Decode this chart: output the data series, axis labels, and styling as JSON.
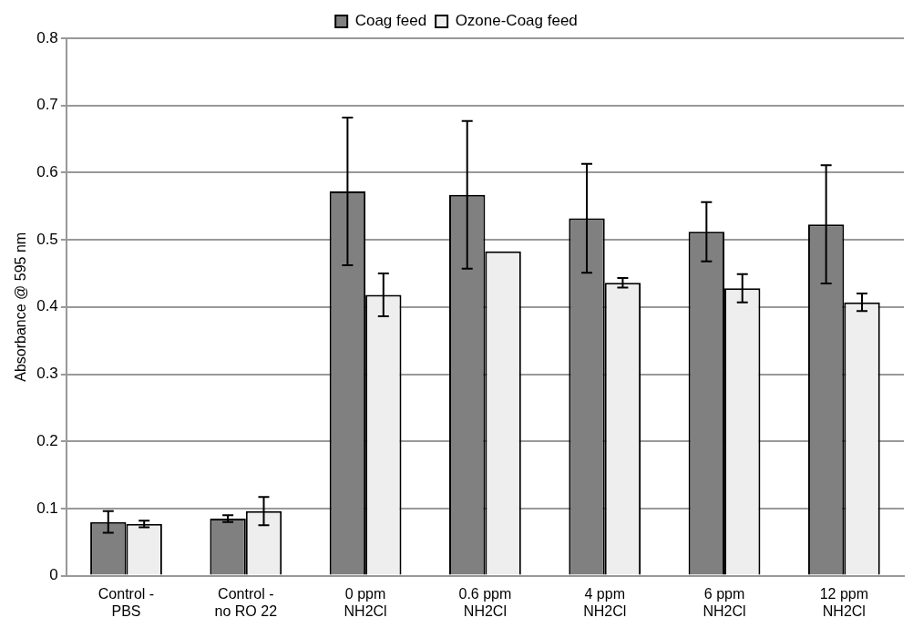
{
  "chart_data": {
    "type": "bar",
    "ylabel": "Absorbance @ 595 nm",
    "categories": [
      "Control - PBS",
      "Control - no RO 22",
      "0 ppm NH2Cl",
      "0.6 ppm NH2Cl",
      "4 ppm NH2Cl",
      "6 ppm NH2Cl",
      "12 ppm NH2Cl"
    ],
    "series": [
      {
        "name": "Coag feed",
        "color": "#808080",
        "values": [
          0.08,
          0.085,
          0.572,
          0.567,
          0.532,
          0.512,
          0.523
        ],
        "errors": [
          0.016,
          0.005,
          0.11,
          0.11,
          0.081,
          0.044,
          0.088
        ]
      },
      {
        "name": "Ozone-Coag feed",
        "color": "#eeeeee",
        "values": [
          0.077,
          0.096,
          0.418,
          0.483,
          0.436,
          0.428,
          0.407
        ],
        "errors": [
          0.005,
          0.021,
          0.032,
          null,
          0.007,
          0.021,
          0.013
        ]
      }
    ],
    "ylim": [
      0,
      0.8
    ],
    "yticks": [
      0,
      0.1,
      0.2,
      0.3,
      0.4,
      0.5,
      0.6,
      0.7,
      0.8
    ],
    "grid": "y",
    "legend": "top"
  }
}
